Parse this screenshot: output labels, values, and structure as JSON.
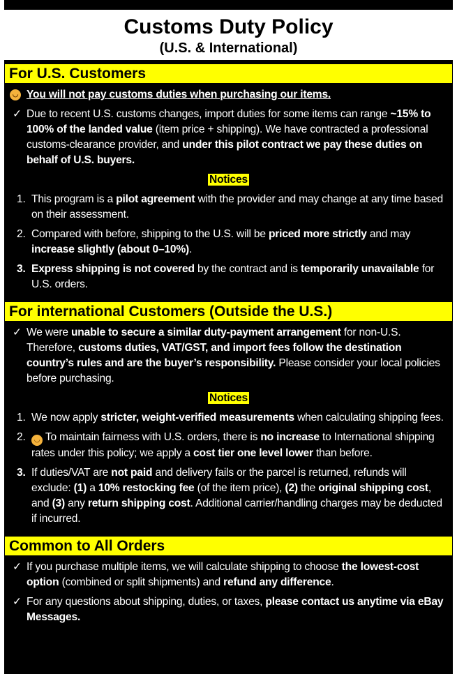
{
  "header": {
    "title": "Customs Duty Policy",
    "subtitle": "(U.S. & International)"
  },
  "colors": {
    "highlight": "#ffff00",
    "background": "#000000",
    "text": "#ffffff"
  },
  "sections": [
    {
      "heading": "For U.S. Customers",
      "blocks": [
        {
          "type": "lead",
          "icon": "smiling-face-icon",
          "segs": [
            {
              "t": "You will not pay customs duties when purchasing our items.",
              "b": true
            }
          ]
        },
        {
          "type": "check",
          "marker": "✓",
          "segs": [
            {
              "t": "Due to recent U.S. customs changes, import duties for some items can range "
            },
            {
              "t": "~15% to 100% of the landed value",
              "b": true
            },
            {
              "t": " (item price + shipping). We have contracted a professional customs-clearance provider, and "
            },
            {
              "t": "under this pilot contract we pay these duties on behalf of U.S. buyers.",
              "b": true
            }
          ]
        },
        {
          "type": "notices",
          "label": "Notices"
        },
        {
          "type": "num",
          "marker": "1.",
          "segs": [
            {
              "t": "This program is a "
            },
            {
              "t": "pilot agreement",
              "b": true
            },
            {
              "t": " with the provider and may change at any time based on their assessment."
            }
          ]
        },
        {
          "type": "num",
          "marker": "2.",
          "segs": [
            {
              "t": "Compared with before, shipping to the U.S. will be "
            },
            {
              "t": "priced more strictly",
              "b": true
            },
            {
              "t": " and may "
            },
            {
              "t": "increase slightly (about 0–10%)",
              "b": true
            },
            {
              "t": "."
            }
          ]
        },
        {
          "type": "num",
          "marker": "3.",
          "boldMarker": true,
          "segs": [
            {
              "t": "Express shipping is not covered",
              "b": true
            },
            {
              "t": " by the contract and is "
            },
            {
              "t": "temporarily unavailable",
              "b": true
            },
            {
              "t": " for U.S. orders."
            }
          ]
        }
      ]
    },
    {
      "heading": "For international Customers (Outside the U.S.)",
      "blocks": [
        {
          "type": "check",
          "marker": "✓",
          "segs": [
            {
              "t": "We were "
            },
            {
              "t": "unable to secure a similar duty-payment arrangement",
              "b": true
            },
            {
              "t": " for non-U.S. Therefore, "
            },
            {
              "t": "customs duties, VAT/GST, and import fees follow the destination country’s rules and are the buyer’s responsibility.",
              "b": true
            },
            {
              "t": " Please consider your local policies before purchasing."
            }
          ]
        },
        {
          "type": "notices",
          "label": "Notices"
        },
        {
          "type": "num",
          "marker": "1.",
          "segs": [
            {
              "t": "We now apply "
            },
            {
              "t": "stricter, weight-verified measurements",
              "b": true
            },
            {
              "t": " when calculating shipping fees."
            }
          ]
        },
        {
          "type": "num",
          "marker": "2.",
          "icon": "smiling-face-icon",
          "segs": [
            {
              "t": " To maintain fairness with U.S. orders, there is "
            },
            {
              "t": "no increase",
              "b": true
            },
            {
              "t": " to International shipping rates under this policy; we apply a "
            },
            {
              "t": "cost tier one level lower",
              "b": true
            },
            {
              "t": " than before."
            }
          ]
        },
        {
          "type": "num",
          "marker": "3.",
          "boldMarker": true,
          "segs": [
            {
              "t": "If duties/VAT are "
            },
            {
              "t": "not paid",
              "b": true
            },
            {
              "t": " and delivery fails or the parcel is returned, refunds will exclude: "
            },
            {
              "t": "(1)",
              "b": true
            },
            {
              "t": " a "
            },
            {
              "t": "10% restocking fee",
              "b": true
            },
            {
              "t": " (of the item price), "
            },
            {
              "t": "(2)",
              "b": true
            },
            {
              "t": " the "
            },
            {
              "t": "original shipping cost",
              "b": true
            },
            {
              "t": ", and "
            },
            {
              "t": "(3)",
              "b": true
            },
            {
              "t": " any "
            },
            {
              "t": "return shipping cost",
              "b": true
            },
            {
              "t": ". Additional carrier/handling charges may be deducted if incurred."
            }
          ]
        }
      ]
    },
    {
      "heading": "Common to All Orders",
      "blocks": [
        {
          "type": "check",
          "marker": "✓",
          "segs": [
            {
              "t": "If you purchase multiple items, we will calculate shipping to choose "
            },
            {
              "t": "the lowest-cost option",
              "b": true
            },
            {
              "t": " (combined or split shipments) and "
            },
            {
              "t": "refund any difference",
              "b": true
            },
            {
              "t": "."
            }
          ]
        },
        {
          "type": "check",
          "marker": "✓",
          "segs": [
            {
              "t": "For any questions about shipping, duties, or taxes, "
            },
            {
              "t": "please contact us anytime via eBay Messages.",
              "b": true
            }
          ]
        }
      ]
    }
  ]
}
